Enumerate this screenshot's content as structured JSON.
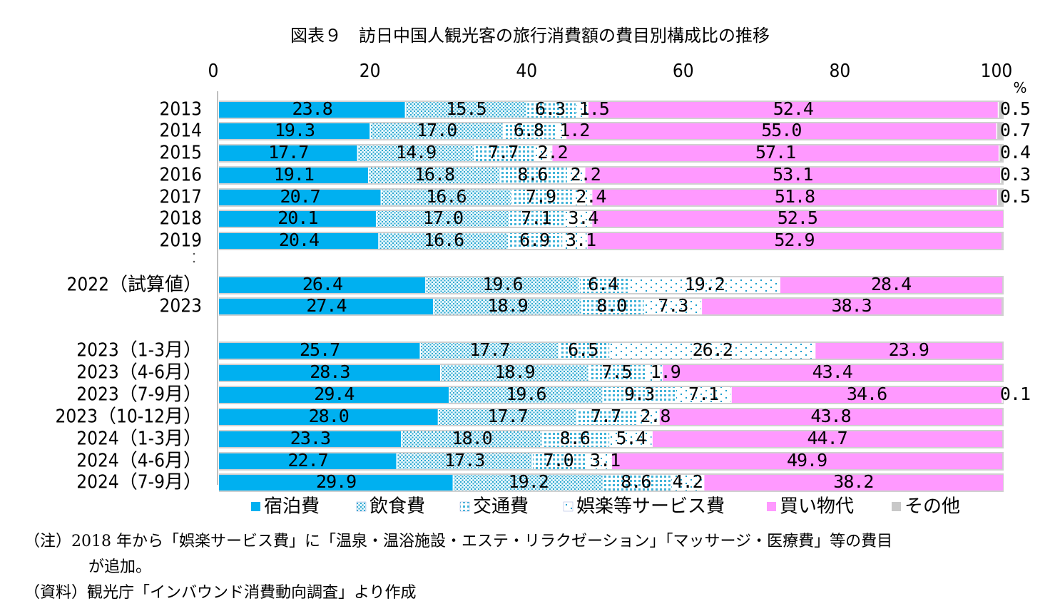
{
  "title": "図表９　訪日中国人観光客の旅行消費額の費目別構成比の推移",
  "notes": [
    "（注）2018 年から「娯楽サービス費」に「温泉・温浴施設・エステ・リラクゼーション」「マッサージ・医療費」等の費目",
    "が追加。",
    "（資料）観光庁「インバウンド消費動向調査」より作成"
  ],
  "chart_data": {
    "type": "bar",
    "orientation": "horizontal",
    "stacked": true,
    "unit": "%",
    "xlim": [
      0,
      100
    ],
    "xticks": [
      "0",
      "20",
      "40",
      "60",
      "80",
      "100"
    ],
    "legend_position": "bottom",
    "categories": [
      "2013",
      "2014",
      "2015",
      "2016",
      "2017",
      "2018",
      "2019",
      "2022（試算値）",
      "2023",
      "2023（1-3月）",
      "2023（4-6月）",
      "2023（7-9月）",
      "2023（10-12月）",
      "2024（1-3月）",
      "2024（4-6月）",
      "2024（7-9月）"
    ],
    "series": [
      {
        "name": "宿泊費",
        "color": "#00b0f0",
        "pattern": "solid",
        "values": [
          23.8,
          19.3,
          17.7,
          19.1,
          20.7,
          20.1,
          20.4,
          26.4,
          27.4,
          25.7,
          28.3,
          29.4,
          28.0,
          23.3,
          22.7,
          29.9
        ],
        "labels": [
          "23.8",
          "19.3",
          "17.7",
          "19.1",
          "20.7",
          "20.1",
          "20.4",
          "26.4",
          "27.4",
          "25.7",
          "28.3",
          "29.4",
          "28.0",
          "23.3",
          "22.7",
          "29.9"
        ]
      },
      {
        "name": "飲食費",
        "color": "#9bd9ee",
        "pattern": "dense-dots",
        "values": [
          15.5,
          17.0,
          14.9,
          16.8,
          16.6,
          17.0,
          16.6,
          19.6,
          18.9,
          17.7,
          18.9,
          19.6,
          17.7,
          18.0,
          17.3,
          19.2
        ],
        "labels": [
          "15.5",
          "17.0",
          "14.9",
          "16.8",
          "16.6",
          "17.0",
          "16.6",
          "19.6",
          "18.9",
          "17.7",
          "18.9",
          "19.6",
          "17.7",
          "18.0",
          "17.3",
          "19.2"
        ]
      },
      {
        "name": "交通費",
        "color": "#7fd0ea",
        "pattern": "grid-dots",
        "values": [
          6.3,
          6.8,
          7.7,
          8.6,
          7.9,
          7.1,
          6.9,
          6.4,
          8.0,
          6.5,
          7.5,
          9.3,
          7.7,
          8.6,
          7.0,
          8.6
        ],
        "labels": [
          "6.3",
          "6.8",
          "7.7",
          "8.6",
          "7.9",
          "7.1",
          "6.9",
          "6.4",
          "8.0",
          "6.5",
          "7.5",
          "9.3",
          "7.7",
          "8.6",
          "7.0",
          "8.6"
        ]
      },
      {
        "name": "娯楽等サービス費",
        "color": "#66c8e8",
        "pattern": "sparse-dots",
        "values": [
          1.5,
          1.2,
          2.2,
          2.2,
          2.4,
          3.4,
          3.1,
          19.2,
          7.3,
          26.2,
          1.9,
          7.1,
          2.8,
          5.4,
          3.1,
          4.2
        ],
        "labels": [
          "1.5",
          "1.2",
          "2.2",
          "2.2",
          "2.4",
          "3.4",
          "3.1",
          "19.2",
          "7.3",
          "26.2",
          "1.9",
          "7.1",
          "2.8",
          "5.4",
          "3.1",
          "4.2"
        ]
      },
      {
        "name": "買い物代",
        "color": "#ff99ff",
        "pattern": "solid",
        "values": [
          52.4,
          55.0,
          57.1,
          53.1,
          51.8,
          52.5,
          52.9,
          28.4,
          38.3,
          23.9,
          43.4,
          34.6,
          43.8,
          44.7,
          49.9,
          38.2
        ],
        "labels": [
          "52.4",
          "55.0",
          "57.1",
          "53.1",
          "51.8",
          "52.5",
          "52.9",
          "28.4",
          "38.3",
          "23.9",
          "43.4",
          "34.6",
          "43.8",
          "44.7",
          "49.9",
          "38.2"
        ]
      },
      {
        "name": "その他",
        "color": "#c8c8c8",
        "pattern": "solid",
        "values": [
          0.5,
          0.7,
          0.4,
          0.3,
          0.5,
          0,
          0,
          0,
          0,
          0,
          0,
          0.1,
          0,
          0,
          0,
          0
        ],
        "labels": [
          "0.5",
          "0.7",
          "0.4",
          "0.3",
          "0.5",
          "",
          "",
          "",
          "",
          "",
          "",
          "0.1",
          "",
          "",
          "",
          ""
        ]
      }
    ]
  }
}
